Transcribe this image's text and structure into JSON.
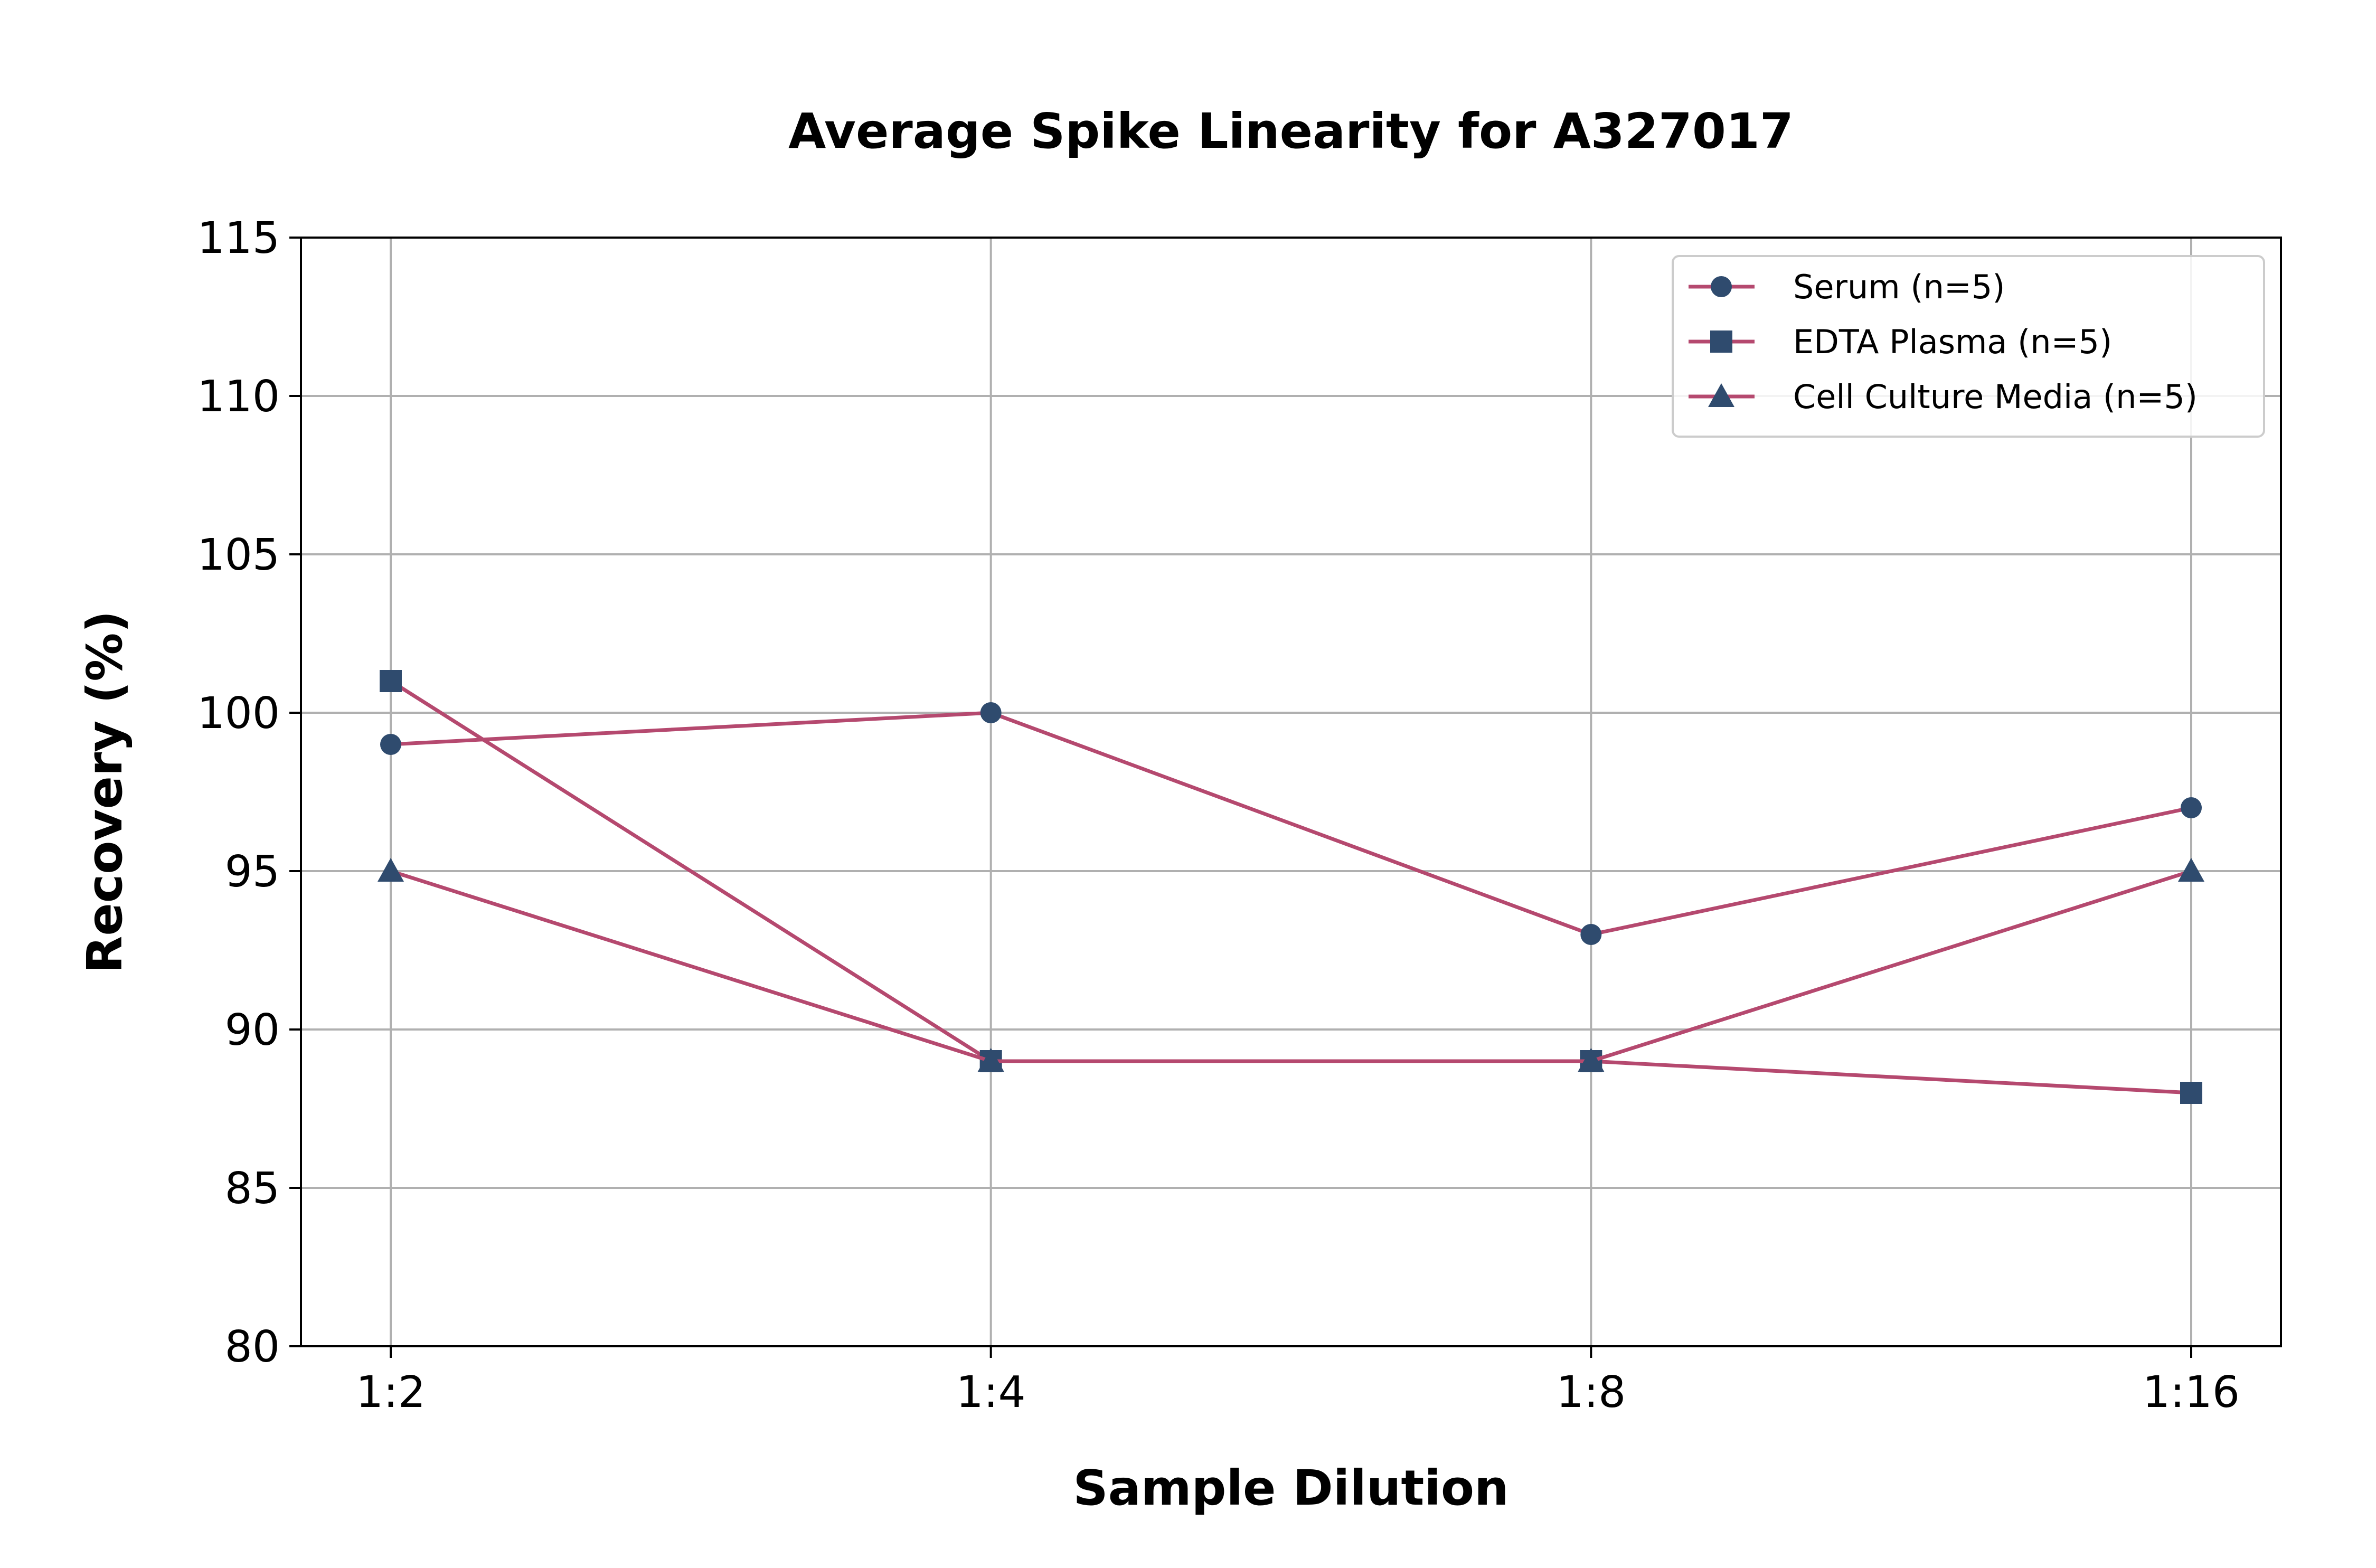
{
  "chart_data": {
    "type": "line",
    "title": "Average Spike Linearity for A327017",
    "xlabel": "Sample Dilution",
    "ylabel": "Recovery (%)",
    "categories": [
      "1:2",
      "1:4",
      "1:8",
      "1:16"
    ],
    "ylim": [
      80,
      115
    ],
    "yticks": [
      80,
      85,
      90,
      95,
      100,
      105,
      110,
      115
    ],
    "grid": true,
    "legend_position": "top-right",
    "line_color": "#b5496f",
    "marker_color": "#2f4b6e",
    "series": [
      {
        "name": "Serum (n=5)",
        "marker": "circle",
        "values": [
          99,
          100,
          93,
          97
        ]
      },
      {
        "name": "EDTA Plasma (n=5)",
        "marker": "square",
        "values": [
          101,
          89,
          89,
          88
        ]
      },
      {
        "name": "Cell Culture Media (n=5)",
        "marker": "triangle",
        "values": [
          95,
          89,
          89,
          95
        ]
      }
    ]
  }
}
